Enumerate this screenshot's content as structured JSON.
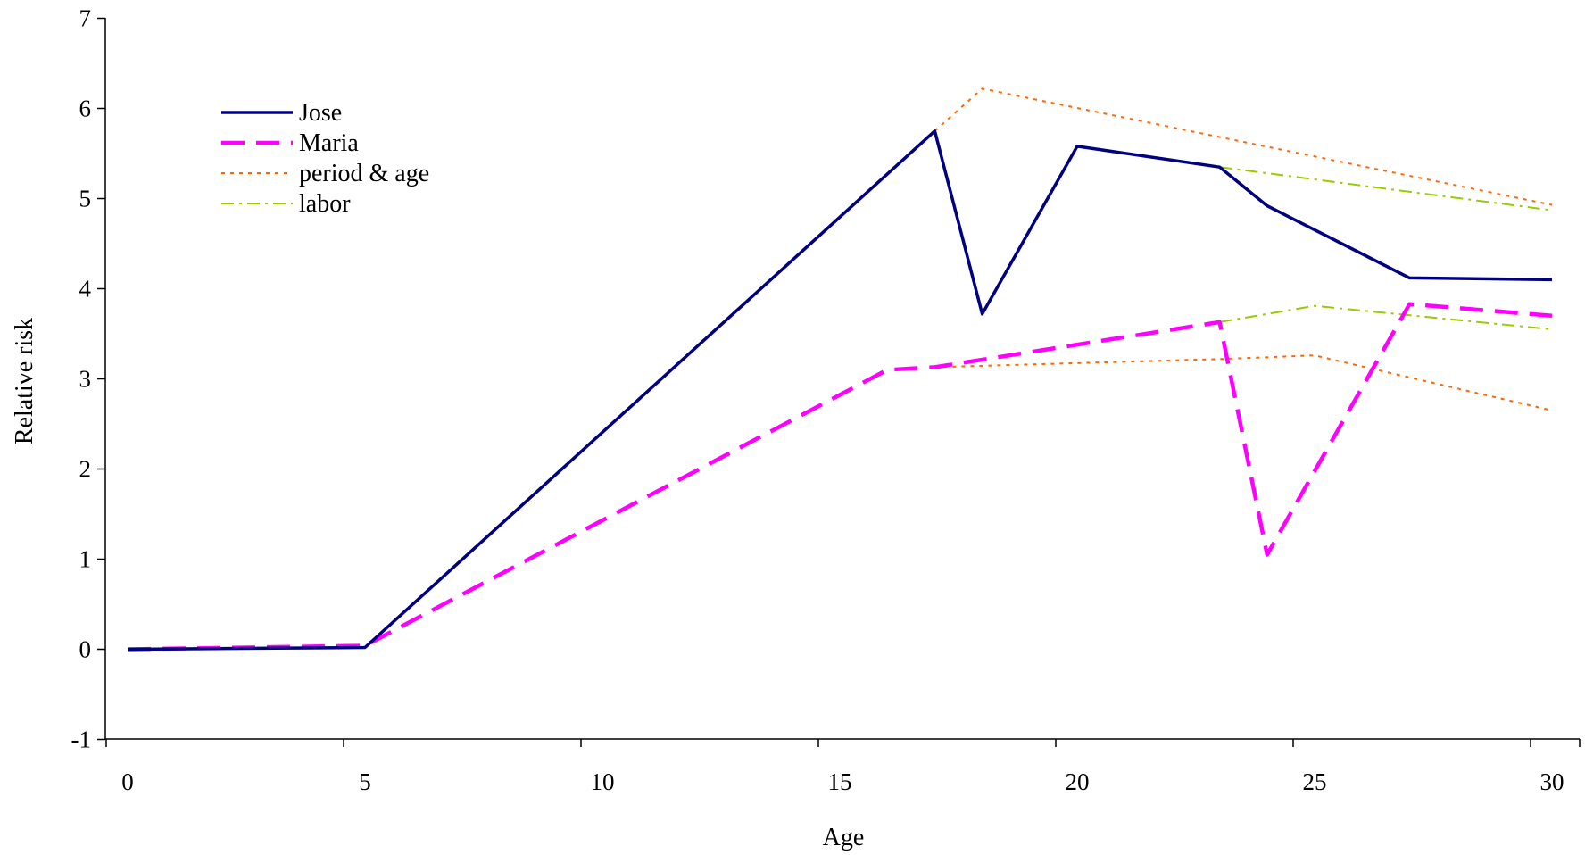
{
  "chart_data": {
    "type": "line",
    "title": "",
    "xlabel": "Age",
    "ylabel": "Relative risk",
    "xlim": [
      -1,
      30.5
    ],
    "ylim": [
      -1,
      7
    ],
    "x_ticks": [
      0,
      5,
      10,
      15,
      20,
      25,
      30
    ],
    "y_ticks": [
      -1,
      0,
      1,
      2,
      3,
      4,
      5,
      6,
      7
    ],
    "grid": false,
    "legend": "top-left",
    "series": [
      {
        "name": "Jose",
        "color": "#000080",
        "style": "solid",
        "points": [
          [
            0,
            0
          ],
          [
            5,
            0.02
          ],
          [
            17,
            5.75
          ],
          [
            18,
            3.72
          ],
          [
            20,
            5.58
          ],
          [
            23,
            5.35
          ],
          [
            24,
            4.92
          ],
          [
            27,
            4.12
          ],
          [
            30,
            4.1
          ]
        ]
      },
      {
        "name": "Maria",
        "color": "#ff00ff",
        "style": "dash",
        "points": [
          [
            0,
            0
          ],
          [
            5,
            0.04
          ],
          [
            16,
            3.1
          ],
          [
            17,
            3.13
          ],
          [
            23,
            3.63
          ],
          [
            24,
            1.05
          ],
          [
            27,
            3.83
          ],
          [
            30,
            3.7
          ]
        ]
      },
      {
        "name": "period & age",
        "color": "#ff6600",
        "style": "dot",
        "segments": [
          [
            [
              17,
              5.75
            ],
            [
              18,
              6.22
            ],
            [
              30,
              4.93
            ]
          ],
          [
            [
              17,
              3.13
            ],
            [
              23,
              3.22
            ],
            [
              25,
              3.26
            ],
            [
              30,
              2.65
            ]
          ]
        ]
      },
      {
        "name": "labor",
        "color": "#99cc00",
        "style": "dashdot",
        "segments": [
          [
            [
              23,
              5.35
            ],
            [
              30,
              4.87
            ]
          ],
          [
            [
              23,
              3.63
            ],
            [
              25,
              3.81
            ],
            [
              30,
              3.55
            ]
          ]
        ]
      }
    ]
  }
}
